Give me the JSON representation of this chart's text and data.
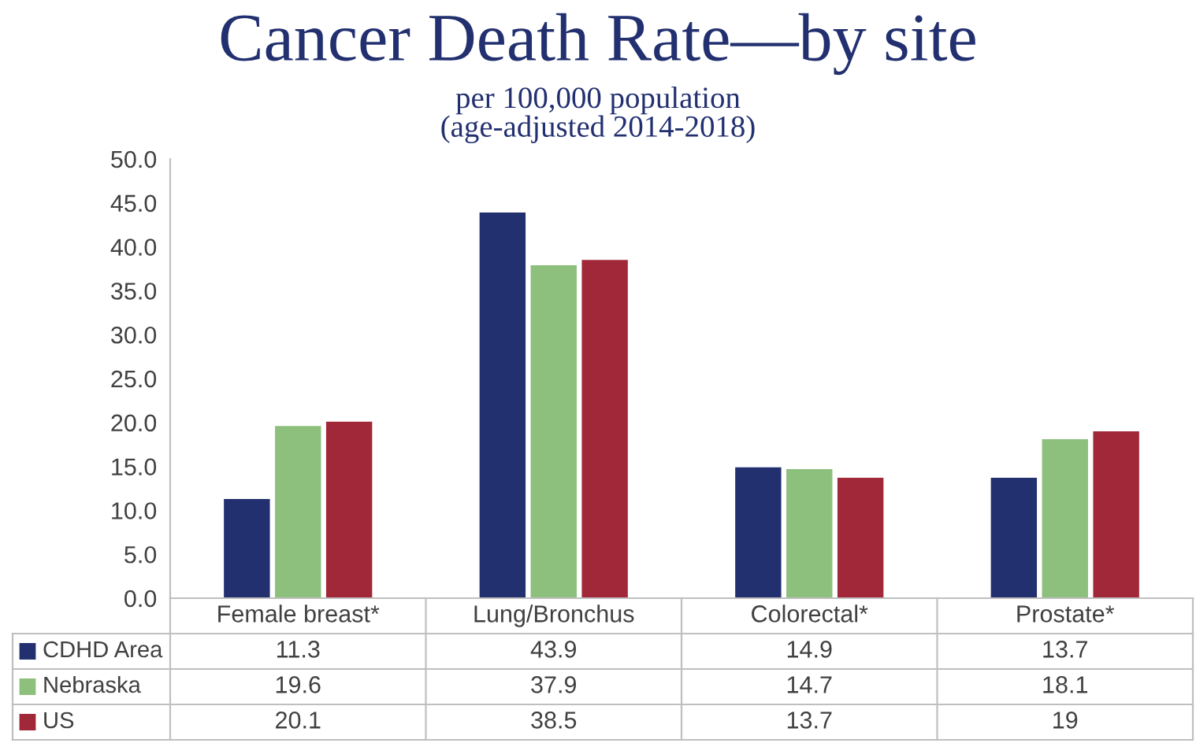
{
  "chart_data": {
    "type": "bar",
    "title": "Cancer Death Rate—by site",
    "subtitle": "per 100,000 population\n(age-adjusted 2014-2018)",
    "categories": [
      "Female breast*",
      "Lung/Bronchus",
      "Colorectal*",
      "Prostate*"
    ],
    "series": [
      {
        "name": "CDHD Area",
        "color": "#223070",
        "values": [
          11.3,
          43.9,
          14.9,
          13.7
        ]
      },
      {
        "name": "Nebraska",
        "color": "#8cc07c",
        "values": [
          19.6,
          37.9,
          14.7,
          18.1
        ]
      },
      {
        "name": "US",
        "color": "#a02838",
        "values": [
          20.1,
          38.5,
          13.7,
          19
        ]
      }
    ],
    "ylim": [
      0,
      50
    ],
    "yticks": [
      {
        "value": 0,
        "label": "0.0"
      },
      {
        "value": 5,
        "label": "5.0"
      },
      {
        "value": 10,
        "label": "10.0"
      },
      {
        "value": 15,
        "label": "15.0"
      },
      {
        "value": 20,
        "label": "20.0"
      },
      {
        "value": 25,
        "label": "25.0"
      },
      {
        "value": 30,
        "label": "30.0"
      },
      {
        "value": 35,
        "label": "35.0"
      },
      {
        "value": 40,
        "label": "40.0"
      },
      {
        "value": 45,
        "label": "45.0"
      },
      {
        "value": 50,
        "label": "50.0"
      }
    ],
    "data_labels": true,
    "grid": false,
    "legend": "bottom left"
  }
}
